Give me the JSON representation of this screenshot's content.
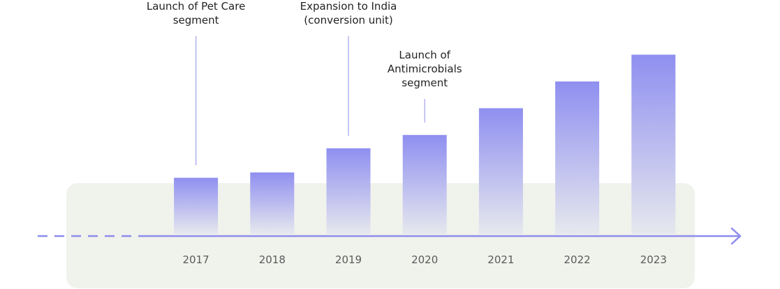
{
  "chart_data": {
    "type": "bar",
    "title": "",
    "xlabel": "",
    "ylabel": "",
    "categories": [
      "2017",
      "2018",
      "2019",
      "2020",
      "2021",
      "2022",
      "2023"
    ],
    "values": [
      21,
      23,
      32,
      37,
      47,
      57,
      67
    ],
    "ylim": [
      0,
      70
    ],
    "grid": false,
    "legend": "none",
    "annotations": [
      {
        "category": "2017",
        "lines": [
          "Launch of Pet Care",
          "segment"
        ]
      },
      {
        "category": "2019",
        "lines": [
          "Expansion to India",
          "(conversion unit)"
        ]
      },
      {
        "category": "2020",
        "lines": [
          "Launch of",
          "Antimicrobials",
          "segment"
        ]
      }
    ],
    "colors": {
      "bar_top": "#8f8ff0",
      "bar_bottom": "#e6e8ee",
      "axis": "#8c8cec",
      "panel": "#f0f2ec",
      "annotation_line": "#a9a6ee",
      "year_text": "#5b5b5b",
      "annotation_text": "#222222"
    }
  }
}
